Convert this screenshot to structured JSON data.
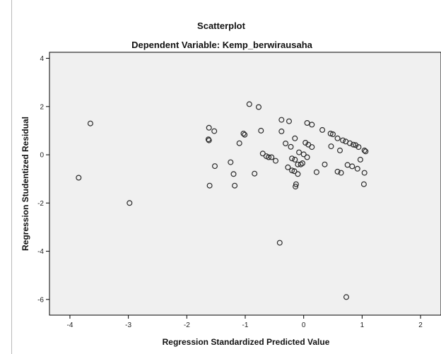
{
  "chart_data": {
    "type": "scatter",
    "title": "Scatterplot",
    "subtitle": "Dependent Variable: Kemp_berwirausaha",
    "xlabel": "Regression Standardized Predicted Value",
    "ylabel": "Regression Studentized Residual",
    "xlim": [
      -4.35,
      2.35
    ],
    "ylim": [
      -6.65,
      4.25
    ],
    "xticks": [
      -4,
      -3,
      -2,
      -1,
      0,
      1,
      2
    ],
    "yticks": [
      -6,
      -4,
      -2,
      0,
      2,
      4
    ],
    "grid": false,
    "legend": "none",
    "marker_color": "#2a2a2a",
    "plot_background": "#f0f0f0",
    "points": [
      {
        "x": -3.85,
        "y": -0.95
      },
      {
        "x": -3.65,
        "y": 1.3
      },
      {
        "x": -2.98,
        "y": -2.0
      },
      {
        "x": -1.62,
        "y": 1.12
      },
      {
        "x": -1.53,
        "y": 0.98
      },
      {
        "x": -1.63,
        "y": 0.64
      },
      {
        "x": -1.62,
        "y": 0.6
      },
      {
        "x": -1.52,
        "y": -0.47
      },
      {
        "x": -1.61,
        "y": -1.28
      },
      {
        "x": -1.25,
        "y": -0.31
      },
      {
        "x": -1.2,
        "y": -0.8
      },
      {
        "x": -1.18,
        "y": -1.28
      },
      {
        "x": -1.1,
        "y": 0.48
      },
      {
        "x": -1.03,
        "y": 0.88
      },
      {
        "x": -1.01,
        "y": 0.83
      },
      {
        "x": -0.93,
        "y": 2.1
      },
      {
        "x": -0.77,
        "y": 1.98
      },
      {
        "x": -0.73,
        "y": 1.0
      },
      {
        "x": -0.7,
        "y": 0.05
      },
      {
        "x": -0.64,
        "y": -0.06
      },
      {
        "x": -0.6,
        "y": -0.1
      },
      {
        "x": -0.55,
        "y": -0.1
      },
      {
        "x": -0.48,
        "y": -0.25
      },
      {
        "x": -0.84,
        "y": -0.78
      },
      {
        "x": -0.38,
        "y": 1.45
      },
      {
        "x": -0.38,
        "y": 0.97
      },
      {
        "x": -0.25,
        "y": 1.39
      },
      {
        "x": -0.31,
        "y": 0.47
      },
      {
        "x": -0.22,
        "y": 0.33
      },
      {
        "x": -0.15,
        "y": 0.68
      },
      {
        "x": -0.27,
        "y": -0.52
      },
      {
        "x": -0.2,
        "y": -0.15
      },
      {
        "x": -0.15,
        "y": -0.2
      },
      {
        "x": -0.1,
        "y": -0.4
      },
      {
        "x": -0.05,
        "y": -0.4
      },
      {
        "x": -0.02,
        "y": -0.35
      },
      {
        "x": -0.2,
        "y": -0.65
      },
      {
        "x": -0.16,
        "y": -0.68
      },
      {
        "x": -0.1,
        "y": -0.8
      },
      {
        "x": -0.13,
        "y": -1.22
      },
      {
        "x": -0.14,
        "y": -1.32
      },
      {
        "x": -0.08,
        "y": 0.1
      },
      {
        "x": 0.0,
        "y": 0.02
      },
      {
        "x": 0.06,
        "y": -0.1
      },
      {
        "x": 0.03,
        "y": 0.5
      },
      {
        "x": 0.08,
        "y": 0.42
      },
      {
        "x": 0.14,
        "y": 0.32
      },
      {
        "x": 0.06,
        "y": 1.32
      },
      {
        "x": 0.14,
        "y": 1.25
      },
      {
        "x": 0.22,
        "y": -0.72
      },
      {
        "x": 0.32,
        "y": 1.03
      },
      {
        "x": 0.36,
        "y": -0.4
      },
      {
        "x": 0.46,
        "y": 0.88
      },
      {
        "x": 0.5,
        "y": 0.85
      },
      {
        "x": 0.47,
        "y": 0.35
      },
      {
        "x": 0.58,
        "y": 0.68
      },
      {
        "x": 0.62,
        "y": 0.18
      },
      {
        "x": 0.58,
        "y": -0.7
      },
      {
        "x": 0.64,
        "y": -0.75
      },
      {
        "x": 0.67,
        "y": 0.6
      },
      {
        "x": 0.72,
        "y": 0.55
      },
      {
        "x": 0.79,
        "y": 0.48
      },
      {
        "x": 0.85,
        "y": 0.42
      },
      {
        "x": 0.89,
        "y": 0.4
      },
      {
        "x": 0.94,
        "y": 0.32
      },
      {
        "x": 1.04,
        "y": 0.18
      },
      {
        "x": 1.06,
        "y": 0.14
      },
      {
        "x": 0.75,
        "y": -0.42
      },
      {
        "x": 0.83,
        "y": -0.48
      },
      {
        "x": 0.92,
        "y": -0.58
      },
      {
        "x": 0.97,
        "y": -0.2
      },
      {
        "x": 1.04,
        "y": -0.75
      },
      {
        "x": 1.03,
        "y": -1.22
      },
      {
        "x": -0.41,
        "y": -3.65
      },
      {
        "x": 0.73,
        "y": -5.9
      }
    ]
  }
}
